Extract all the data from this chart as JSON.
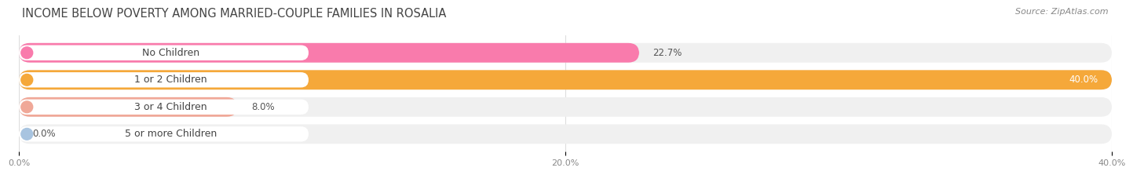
{
  "title": "INCOME BELOW POVERTY AMONG MARRIED-COUPLE FAMILIES IN ROSALIA",
  "source": "Source: ZipAtlas.com",
  "categories": [
    "No Children",
    "1 or 2 Children",
    "3 or 4 Children",
    "5 or more Children"
  ],
  "values": [
    22.7,
    40.0,
    8.0,
    0.0
  ],
  "bar_colors": [
    "#F97BAC",
    "#F5A83A",
    "#F0A898",
    "#A8C4E0"
  ],
  "track_color": "#F0F0F0",
  "xlim": [
    0,
    40.0
  ],
  "xticks": [
    0.0,
    20.0,
    40.0
  ],
  "xtick_labels": [
    "0.0%",
    "20.0%",
    "40.0%"
  ],
  "bar_height": 0.72,
  "background_color": "#FFFFFF",
  "title_fontsize": 10.5,
  "label_fontsize": 9,
  "value_fontsize": 8.5,
  "source_fontsize": 8
}
